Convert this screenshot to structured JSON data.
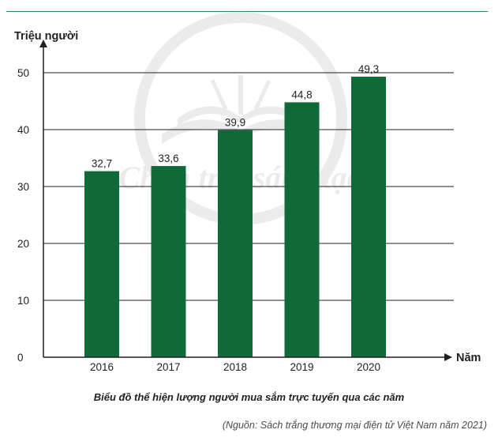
{
  "chart_data": {
    "type": "bar",
    "categories": [
      "2016",
      "2017",
      "2018",
      "2019",
      "2020"
    ],
    "values": [
      32.7,
      33.6,
      39.9,
      44.8,
      49.3
    ],
    "value_labels": [
      "32,7",
      "33,6",
      "39,9",
      "44,8",
      "49,3"
    ],
    "ylabel": "Triệu người",
    "xlabel": "Năm",
    "yticks": [
      0,
      10,
      20,
      30,
      40,
      50
    ],
    "ylim": [
      0,
      50
    ],
    "grid": true,
    "bar_color": "#0f6a38",
    "title": "Biểu đồ thể hiện lượng người mua sắm trực tuyến qua các năm"
  },
  "caption": "Biểu đồ thể hiện lượng người mua sắm trực tuyến qua các năm",
  "source": "(Nguồn: Sách trắng thương mại điện tử Việt Nam năm 2021)",
  "watermark": {
    "text": "Chân trời sáng tạo",
    "icon": "open-book-icon"
  }
}
